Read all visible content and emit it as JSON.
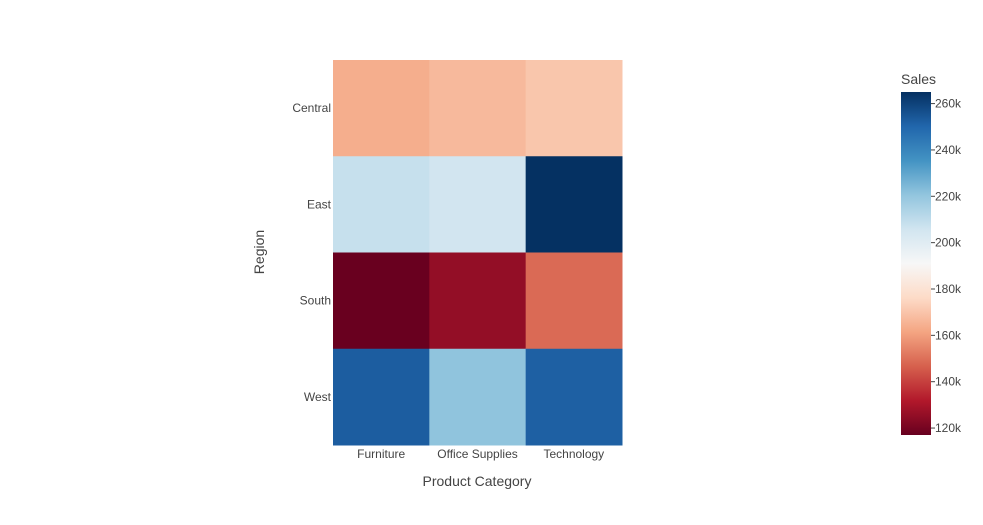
{
  "chart_data": {
    "type": "heatmap",
    "title": "",
    "xlabel": "Product Category",
    "ylabel": "Region",
    "x": [
      "Furniture",
      "Office Supplies",
      "Technology"
    ],
    "y": [
      "Central",
      "East",
      "South",
      "West"
    ],
    "z": [
      [
        163800,
        167000,
        170400
      ],
      [
        208300,
        205500,
        264800
      ],
      [
        117300,
        125600,
        148800
      ],
      [
        252600,
        220900,
        251900
      ]
    ],
    "colorbar": {
      "title": "Sales",
      "range": [
        117000,
        265000
      ],
      "ticks": [
        120000,
        140000,
        160000,
        180000,
        200000,
        220000,
        240000,
        260000
      ],
      "tick_labels": [
        "120k",
        "140k",
        "160k",
        "180k",
        "200k",
        "220k",
        "240k",
        "260k"
      ]
    },
    "colorscale": [
      "#67001f",
      "#b2182b",
      "#d6604d",
      "#f4a582",
      "#fddbc7",
      "#f7f7f7",
      "#d1e5f0",
      "#92c5de",
      "#4393c3",
      "#2166ac",
      "#053061"
    ]
  }
}
